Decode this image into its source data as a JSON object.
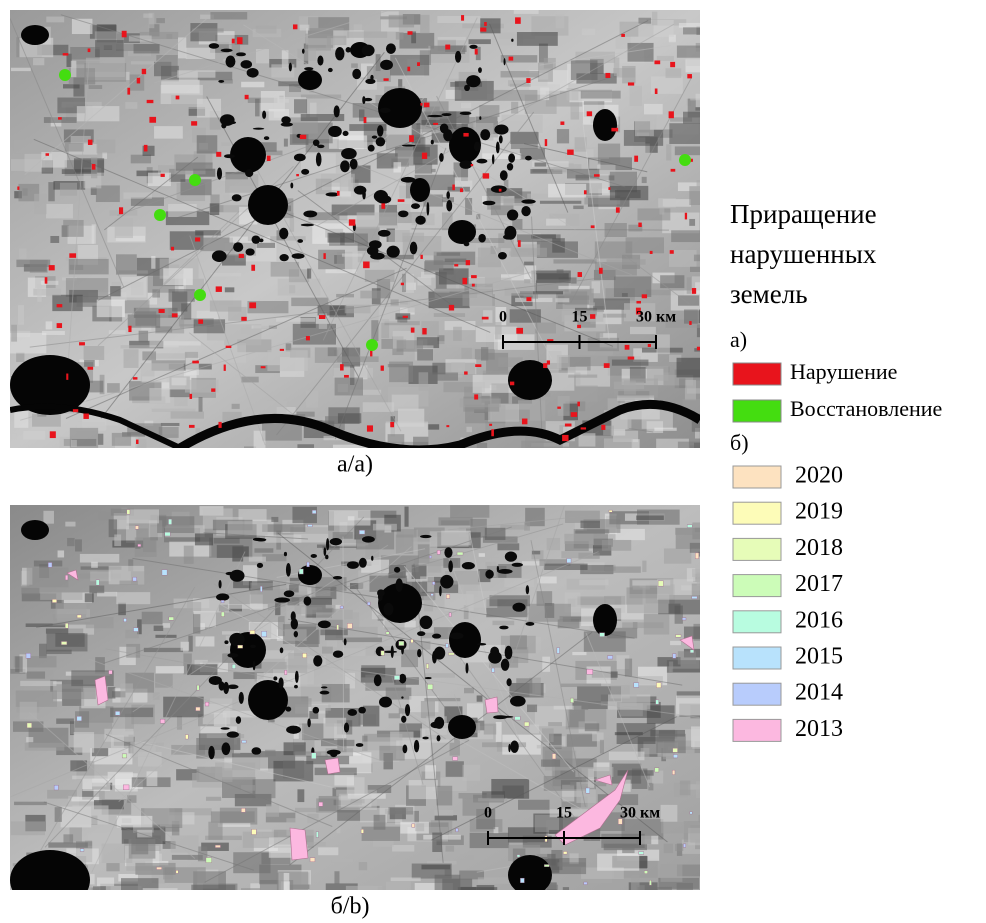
{
  "panels": [
    {
      "caption": "а/а)",
      "scale_bar": {
        "labels": [
          "0",
          "15",
          "30 км"
        ]
      }
    },
    {
      "caption": "б/b)",
      "scale_bar": {
        "labels": [
          "0",
          "15",
          "30 км"
        ]
      }
    }
  ],
  "legend": {
    "title_lines": [
      "Приращение",
      "нарушенных",
      "земель"
    ],
    "section_a": "а)",
    "items_a": [
      {
        "label": "Нарушение",
        "color": "#e8141c"
      },
      {
        "label": "Восстановление",
        "color": "#44dd10"
      }
    ],
    "section_b": "б)",
    "items_b": [
      {
        "label": "2020",
        "color": "#fde2c0"
      },
      {
        "label": "2019",
        "color": "#fdfcb8"
      },
      {
        "label": "2018",
        "color": "#e6fcb8"
      },
      {
        "label": "2017",
        "color": "#ccfcb8"
      },
      {
        "label": "2016",
        "color": "#b8fce0"
      },
      {
        "label": "2015",
        "color": "#b8e2fc"
      },
      {
        "label": "2014",
        "color": "#b8ccfc"
      },
      {
        "label": "2013",
        "color": "#fcb8e0"
      }
    ]
  }
}
